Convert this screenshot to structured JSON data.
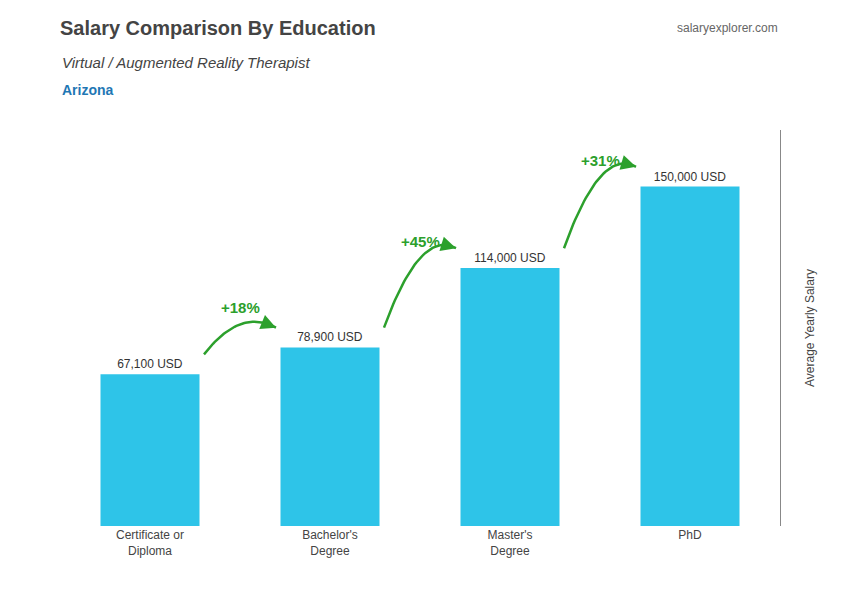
{
  "chart_data": {
    "type": "bar",
    "title": "Salary Comparison By Education",
    "subtitle": "Virtual / Augmented Reality Therapist",
    "ylabel": "Average Yearly Salary",
    "categories": [
      "Certificate or\nDiploma",
      "Bachelor's\nDegree",
      "Master's\nDegree",
      "PhD"
    ],
    "values": [
      67100,
      78900,
      114000,
      150000
    ],
    "value_labels": [
      "67,100 USD",
      "78,900 USD",
      "114,000 USD",
      "150,000 USD"
    ],
    "color": "#2EC4E8",
    "data_labels": true,
    "ylim": [
      0,
      175000
    ],
    "grid": false,
    "tick_labels": "x",
    "annotations": [
      {
        "text": "+18%",
        "from": "Certificate or\nDiploma",
        "to": "Bachelor's\nDegree",
        "color": "#2ca02c"
      },
      {
        "text": "+45%",
        "from": "Bachelor's\nDegree",
        "to": "Master's\nDegree",
        "color": "#2ca02c"
      },
      {
        "text": "+31%",
        "from": "Master's\nDegree",
        "to": "PhD",
        "color": "#2ca02c"
      },
      {
        "text": "Arizona"
      },
      {
        "text": "salaryexplorer.com"
      }
    ]
  }
}
